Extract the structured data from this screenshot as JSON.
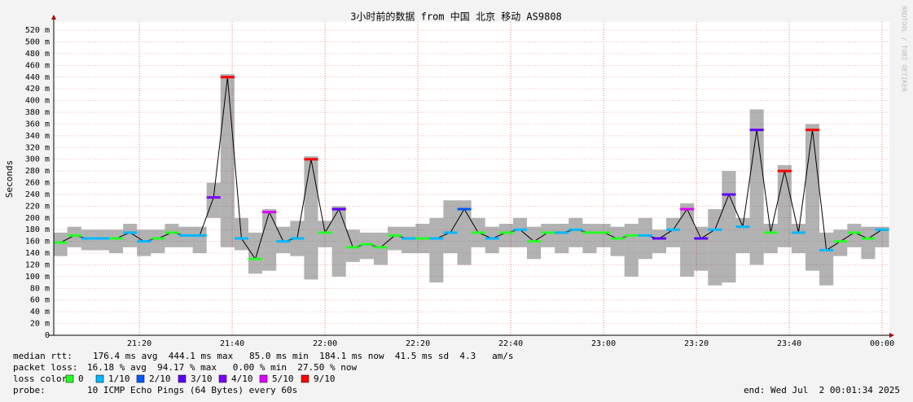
{
  "chart_data": {
    "type": "smoke",
    "title": "3小时前的数据 from 中国 北京 移动 AS9808",
    "y_label": "Seconds",
    "watermark": "RRDTOOL / TOBI OETIKER",
    "xlim": [
      1.57,
      181.57
    ],
    "xticks": [
      {
        "value": 20,
        "label": "21:20"
      },
      {
        "value": 40,
        "label": "21:40"
      },
      {
        "value": 60,
        "label": "22:00"
      },
      {
        "value": 80,
        "label": "22:20"
      },
      {
        "value": 100,
        "label": "22:40"
      },
      {
        "value": 120,
        "label": "23:00"
      },
      {
        "value": 140,
        "label": "23:20"
      },
      {
        "value": 160,
        "label": "23:40"
      },
      {
        "value": 180,
        "label": "00:00"
      }
    ],
    "ylim": [
      0,
      534
    ],
    "yticks": [
      0,
      {
        "value": 20,
        "label": "20 m"
      },
      {
        "value": 40,
        "label": "40 m"
      },
      {
        "value": 60,
        "label": "60 m"
      },
      {
        "value": 80,
        "label": "80 m"
      },
      {
        "value": 100,
        "label": "100 m"
      },
      {
        "value": 120,
        "label": "120 m"
      },
      {
        "value": 140,
        "label": "140 m"
      },
      {
        "value": 160,
        "label": "160 m"
      },
      {
        "value": 180,
        "label": "180 m"
      },
      {
        "value": 200,
        "label": "200 m"
      },
      {
        "value": 220,
        "label": "220 m"
      },
      {
        "value": 240,
        "label": "240 m"
      },
      {
        "value": 260,
        "label": "260 m"
      },
      {
        "value": 280,
        "label": "280 m"
      },
      {
        "value": 300,
        "label": "300 m"
      },
      {
        "value": 320,
        "label": "320 m"
      },
      {
        "value": 340,
        "label": "340 m"
      },
      {
        "value": 360,
        "label": "360 m"
      },
      {
        "value": 380,
        "label": "380 m"
      },
      {
        "value": 400,
        "label": "400 m"
      },
      {
        "value": 420,
        "label": "420 m"
      },
      {
        "value": 440,
        "label": "440 m"
      },
      {
        "value": 460,
        "label": "460 m"
      },
      {
        "value": 480,
        "label": "480 m"
      },
      {
        "value": 500,
        "label": "500 m"
      },
      {
        "value": 520,
        "label": "520 m"
      }
    ],
    "grid": true,
    "x": [
      3,
      6,
      9,
      12,
      15,
      18,
      21,
      24,
      27,
      30,
      33,
      36,
      39,
      42,
      45,
      48,
      51,
      54,
      57,
      60,
      63,
      66,
      69,
      72,
      75,
      78,
      81,
      84,
      87,
      90,
      93,
      96,
      99,
      102,
      105,
      108,
      111,
      114,
      117,
      120,
      123,
      126,
      129,
      132,
      135,
      138,
      141,
      144,
      147,
      150,
      153,
      156,
      159,
      162,
      165,
      168,
      171,
      174,
      177,
      180
    ],
    "median": [
      158,
      170,
      165,
      165,
      165,
      175,
      160,
      165,
      175,
      170,
      170,
      235,
      440,
      165,
      130,
      210,
      160,
      165,
      300,
      175,
      215,
      150,
      155,
      150,
      170,
      165,
      165,
      165,
      175,
      215,
      175,
      165,
      175,
      180,
      160,
      175,
      175,
      180,
      175,
      175,
      165,
      170,
      170,
      165,
      180,
      215,
      165,
      180,
      240,
      185,
      350,
      175,
      280,
      175,
      350,
      145,
      160,
      175,
      165,
      180
    ],
    "smoke_low": [
      135,
      150,
      145,
      145,
      140,
      150,
      135,
      140,
      150,
      150,
      140,
      200,
      150,
      145,
      105,
      110,
      140,
      135,
      95,
      150,
      100,
      125,
      130,
      120,
      145,
      140,
      140,
      90,
      140,
      120,
      150,
      140,
      150,
      150,
      130,
      150,
      140,
      150,
      140,
      150,
      135,
      100,
      130,
      140,
      150,
      100,
      110,
      85,
      90,
      140,
      120,
      140,
      150,
      140,
      110,
      85,
      135,
      150,
      130,
      150
    ],
    "smoke_high": [
      175,
      185,
      180,
      180,
      180,
      190,
      180,
      180,
      190,
      185,
      185,
      260,
      445,
      200,
      175,
      215,
      185,
      195,
      305,
      195,
      220,
      180,
      175,
      175,
      185,
      185,
      190,
      200,
      230,
      230,
      200,
      185,
      190,
      200,
      185,
      190,
      190,
      200,
      190,
      190,
      185,
      190,
      200,
      180,
      200,
      225,
      185,
      215,
      280,
      200,
      385,
      190,
      290,
      190,
      360,
      175,
      180,
      190,
      185,
      185
    ],
    "loss": [
      0,
      0,
      1,
      1,
      0,
      1,
      1,
      0,
      0,
      1,
      1,
      4,
      9,
      1,
      0,
      5,
      1,
      1,
      9,
      0,
      3,
      0,
      0,
      0,
      0,
      1,
      0,
      1,
      1,
      2,
      0,
      1,
      0,
      1,
      0,
      0,
      1,
      1,
      0,
      0,
      0,
      0,
      1,
      3,
      1,
      5,
      3,
      1,
      3,
      1,
      3,
      0,
      9,
      1,
      9,
      1,
      0,
      0,
      0,
      1
    ],
    "stats": {
      "median_label": "median rtt:",
      "median_text": "176.4 ms avg  444.1 ms max   85.0 ms min  184.1 ms now  41.5 ms sd  4.3   am/s",
      "loss_label": "packet loss:",
      "loss_text": "16.18 % avg  94.17 % max   0.00 % min  27.50 % now",
      "probe_label": "probe:",
      "probe_text": "10 ICMP Echo Pings (64 Bytes) every 60s",
      "end_text": "end: Wed Jul  2 00:01:34 2025"
    },
    "loss_color_label": "loss color:",
    "loss_colors": [
      {
        "name": "0",
        "color": "#26ff26"
      },
      {
        "name": "1/10",
        "color": "#00b8ff"
      },
      {
        "name": "2/10",
        "color": "#0059ff"
      },
      {
        "name": "3/10",
        "color": "#5e00ff"
      },
      {
        "name": "4/10",
        "color": "#7e00ff"
      },
      {
        "name": "5/10",
        "color": "#dd00ff"
      },
      {
        "name": "9/10",
        "color": "#ff0000"
      }
    ]
  }
}
